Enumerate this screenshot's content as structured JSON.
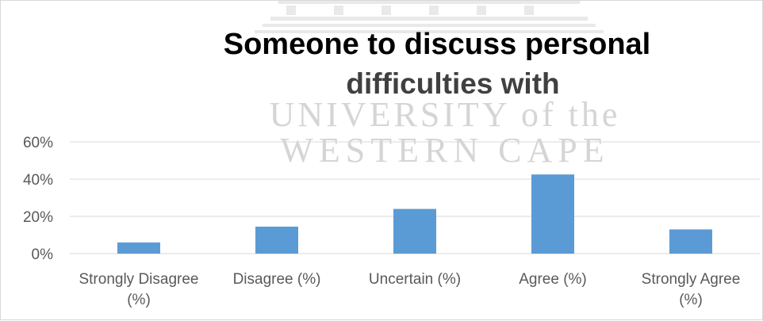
{
  "chart_data": {
    "type": "bar",
    "title_line1": "Someone to discuss personal",
    "title_line2": "difficulties with",
    "categories": [
      [
        "Strongly Disagree",
        "(%)"
      ],
      [
        "Disagree (%)"
      ],
      [
        "Uncertain (%)"
      ],
      [
        "Agree (%)"
      ],
      [
        "Strongly Agree",
        "(%)"
      ]
    ],
    "values": [
      6,
      14.5,
      24,
      42.5,
      13
    ],
    "ylim": [
      0,
      60
    ],
    "yticks": [
      0,
      20,
      40,
      60
    ],
    "ytick_labels": [
      "0%",
      "20%",
      "40%",
      "60%"
    ],
    "grid": true,
    "bar_color": "#5b9bd5",
    "gridline_color": "#d9d9d9"
  },
  "watermark": {
    "line1": "UNIVERSITY of the",
    "line2": "WESTERN CAPE"
  }
}
